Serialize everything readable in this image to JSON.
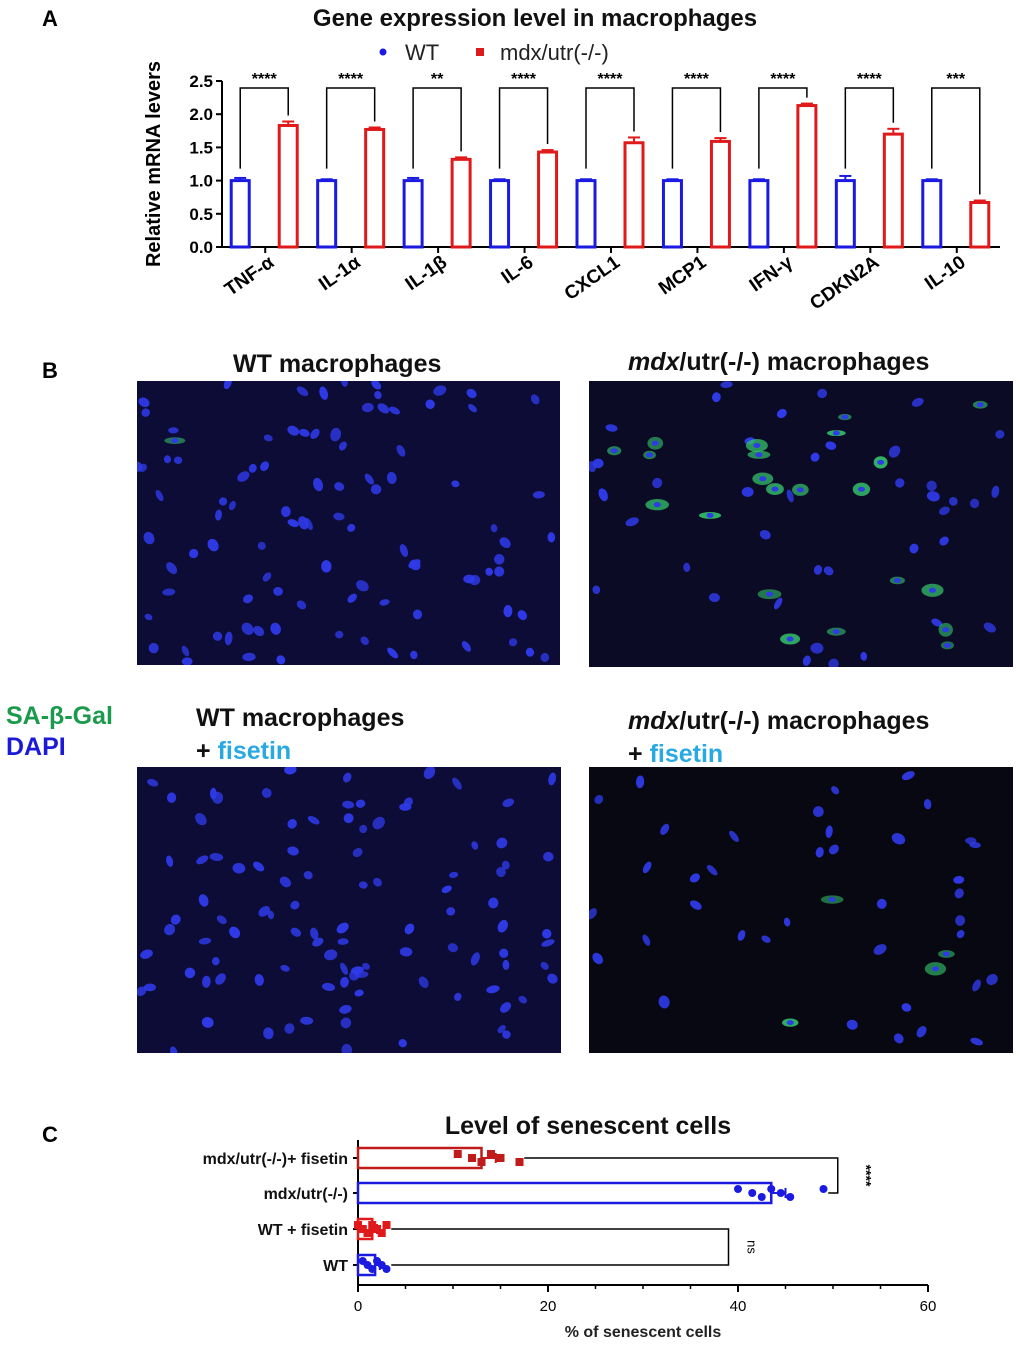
{
  "panels": {
    "a_letter": "A",
    "b_letter": "B",
    "c_letter": "C"
  },
  "microscopy": {
    "wt_title": "WT macrophages",
    "mdx_title_italic": "mdx",
    "mdx_title_rest": "/utr(-/-)  macrophages",
    "wt2_title": "WT  macrophages",
    "plus_sign": "+",
    "fisetin": "fisetin",
    "stain_green": "SA-β-Gal",
    "stain_blue": "DAPI",
    "colors": {
      "background_wt": "#0c0c36",
      "background_mdx": "#0b0b26",
      "nuclei": "#2f3ae8",
      "senescent": "#34c46a"
    }
  },
  "chart_data": [
    {
      "type": "bar",
      "title": "Gene expression level in macrophages",
      "ylabel": "Relative mRNA levers",
      "xlabel": "",
      "ylim": [
        0,
        2.5
      ],
      "yticks": [
        "0.0",
        "0.5",
        "1.0",
        "1.5",
        "2.0",
        "2.5"
      ],
      "legend_placement": "top-center",
      "categories": [
        "TNF-α",
        "IL-1α",
        "IL-1β",
        "IL-6",
        "CXCL1",
        "MCP1",
        "IFN-γ",
        "CDKN2A",
        "IL-10"
      ],
      "series": [
        {
          "name": "WT",
          "color": "#1a1ae0",
          "values": [
            1.0,
            1.0,
            1.0,
            1.0,
            1.0,
            1.0,
            1.0,
            1.0,
            1.0
          ],
          "errors": [
            0.04,
            0.02,
            0.04,
            0.02,
            0.02,
            0.02,
            0.02,
            0.07,
            0.02
          ]
        },
        {
          "name": "mdx/utr(-/-)",
          "color": "#e01a1a",
          "values": [
            1.83,
            1.77,
            1.32,
            1.43,
            1.57,
            1.59,
            2.13,
            1.7,
            0.67
          ],
          "errors": [
            0.06,
            0.03,
            0.03,
            0.03,
            0.08,
            0.05,
            0.03,
            0.08,
            0.03
          ]
        }
      ],
      "significance": [
        "****",
        "****",
        "**",
        "****",
        "****",
        "****",
        "****",
        "****",
        "***"
      ]
    },
    {
      "type": "bar",
      "orientation": "horizontal",
      "title": "Level of senescent cells",
      "xlabel": "% of  senescent cells",
      "ylabel": "",
      "xlim": [
        0,
        60
      ],
      "xticks": [
        "0",
        "20",
        "40",
        "60"
      ],
      "categories": [
        "mdx/utr(-/-)+ fisetin",
        "mdx/utr(-/-)",
        "WT + fisetin",
        "WT"
      ],
      "colors": [
        "#c01a1a",
        "#1a1ae0",
        "#e01a1a",
        "#1a1ae0"
      ],
      "values": [
        13,
        43.5,
        1.5,
        1.8
      ],
      "errors": [
        1.5,
        1.5,
        0.5,
        0.5
      ],
      "points": [
        [
          10.5,
          12,
          13,
          14,
          15,
          17
        ],
        [
          40,
          41.5,
          42.5,
          43.5,
          44.5,
          45.5,
          49
        ],
        [
          0,
          0.5,
          1,
          1.5,
          2,
          2.5,
          3
        ],
        [
          0.5,
          1,
          1.5,
          2,
          2.5,
          3
        ]
      ],
      "significance": [
        {
          "between": [
            "mdx/utr(-/-)+ fisetin",
            "mdx/utr(-/-)"
          ],
          "label": "****"
        },
        {
          "between": [
            "WT + fisetin",
            "WT"
          ],
          "label": "ns"
        }
      ]
    }
  ]
}
